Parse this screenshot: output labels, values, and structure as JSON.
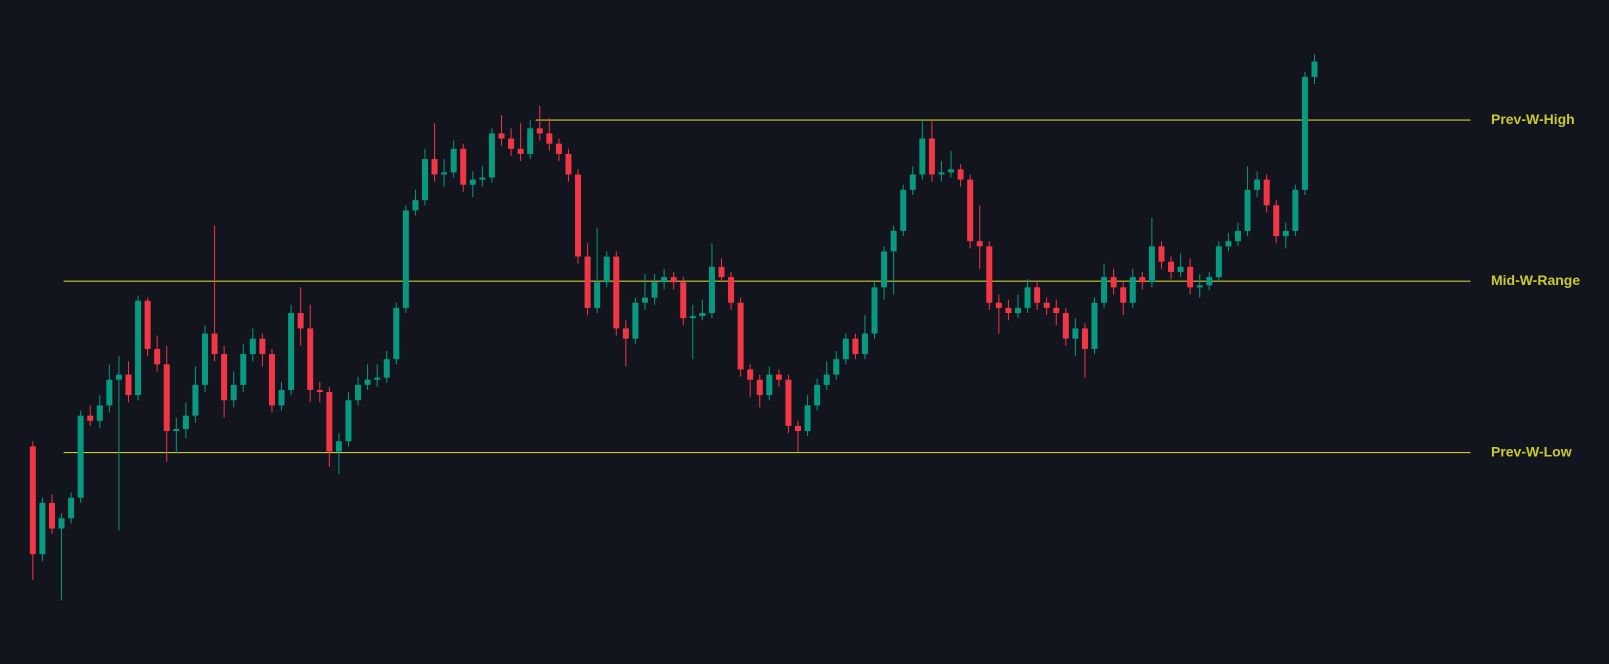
{
  "chart_data": {
    "type": "candlestick",
    "ylim": [
      0,
      647
    ],
    "up_color": "#089981",
    "down_color": "#f23645",
    "level_color": "#c9c930",
    "open": [
      212,
      107,
      157,
      132,
      142,
      162,
      242,
      237,
      252,
      277,
      282,
      262,
      354,
      307,
      292,
      227,
      229,
      242,
      272,
      322,
      302,
      257,
      272,
      302,
      317,
      302,
      252,
      267,
      342,
      327,
      267,
      265,
      207,
      217,
      257,
      272,
      277,
      279,
      297,
      347,
      442,
      452,
      492,
      477,
      479,
      502,
      467,
      472,
      474,
      517,
      512,
      502,
      497,
      522,
      517,
      507,
      497,
      477,
      397,
      347,
      372,
      397,
      327,
      317,
      352,
      357,
      372,
      377,
      372,
      337,
      339,
      342,
      387,
      377,
      352,
      287,
      277,
      262,
      282,
      277,
      232,
      227,
      252,
      272,
      282,
      297,
      317,
      302,
      322,
      367,
      402,
      422,
      462,
      477,
      512,
      477,
      479,
      482,
      472,
      412,
      407,
      352,
      347,
      342,
      347,
      367,
      352,
      347,
      342,
      317,
      327,
      307,
      352,
      377,
      367,
      352,
      377,
      372,
      407,
      392,
      382,
      387,
      367,
      369,
      377,
      407,
      412,
      422,
      462,
      472,
      447,
      417,
      422,
      462,
      572
    ],
    "high": [
      217,
      162,
      165,
      147,
      167,
      247,
      252,
      262,
      292,
      300,
      295,
      359,
      357,
      320,
      310,
      240,
      255,
      290,
      330,
      427,
      310,
      285,
      312,
      327,
      322,
      307,
      275,
      350,
      367,
      350,
      275,
      270,
      225,
      265,
      280,
      292,
      292,
      305,
      352,
      447,
      462,
      502,
      527,
      492,
      510,
      507,
      480,
      485,
      522,
      535,
      522,
      527,
      530,
      544,
      532,
      512,
      502,
      482,
      410,
      425,
      402,
      402,
      335,
      357,
      380,
      380,
      385,
      382,
      377,
      350,
      355,
      410,
      395,
      382,
      357,
      292,
      282,
      290,
      287,
      282,
      237,
      262,
      278,
      295,
      305,
      322,
      322,
      340,
      372,
      407,
      427,
      467,
      485,
      530,
      530,
      490,
      500,
      487,
      477,
      447,
      412,
      360,
      355,
      360,
      375,
      372,
      357,
      355,
      347,
      337,
      332,
      357,
      390,
      385,
      372,
      385,
      382,
      435,
      412,
      397,
      400,
      395,
      380,
      382,
      412,
      420,
      430,
      485,
      480,
      477,
      452,
      430,
      467,
      577,
      594
    ],
    "low": [
      82,
      100,
      127,
      62,
      137,
      157,
      232,
      230,
      245,
      130,
      255,
      257,
      300,
      285,
      197,
      205,
      220,
      235,
      265,
      295,
      240,
      250,
      265,
      295,
      290,
      245,
      247,
      262,
      310,
      255,
      255,
      192,
      185,
      212,
      252,
      267,
      270,
      274,
      292,
      342,
      437,
      447,
      470,
      465,
      474,
      460,
      455,
      465,
      469,
      505,
      495,
      490,
      492,
      510,
      500,
      490,
      470,
      390,
      340,
      342,
      367,
      320,
      290,
      312,
      345,
      350,
      365,
      365,
      330,
      297,
      335,
      337,
      372,
      345,
      280,
      260,
      250,
      257,
      270,
      225,
      207,
      222,
      247,
      267,
      277,
      292,
      297,
      297,
      317,
      355,
      360,
      417,
      457,
      472,
      470,
      470,
      474,
      465,
      405,
      385,
      345,
      322,
      335,
      337,
      342,
      345,
      340,
      330,
      310,
      300,
      279,
      302,
      347,
      360,
      340,
      347,
      365,
      367,
      385,
      375,
      377,
      360,
      357,
      364,
      372,
      402,
      407,
      417,
      455,
      440,
      410,
      405,
      417,
      457,
      565
    ],
    "close": [
      107,
      157,
      132,
      142,
      162,
      242,
      237,
      252,
      277,
      282,
      262,
      354,
      307,
      292,
      227,
      229,
      242,
      272,
      322,
      302,
      257,
      272,
      302,
      317,
      302,
      252,
      267,
      342,
      327,
      267,
      265,
      207,
      217,
      257,
      272,
      277,
      279,
      297,
      347,
      442,
      452,
      492,
      477,
      479,
      502,
      467,
      472,
      474,
      517,
      512,
      502,
      497,
      522,
      517,
      507,
      497,
      477,
      397,
      347,
      372,
      397,
      327,
      317,
      352,
      357,
      372,
      377,
      372,
      337,
      339,
      342,
      387,
      377,
      352,
      287,
      277,
      262,
      282,
      277,
      232,
      227,
      252,
      272,
      282,
      297,
      317,
      302,
      322,
      367,
      402,
      422,
      462,
      477,
      512,
      477,
      479,
      482,
      472,
      412,
      407,
      352,
      347,
      342,
      347,
      367,
      352,
      347,
      342,
      317,
      327,
      307,
      352,
      377,
      367,
      352,
      377,
      372,
      407,
      392,
      382,
      387,
      367,
      369,
      377,
      407,
      412,
      422,
      462,
      472,
      447,
      417,
      422,
      462,
      572,
      587
    ],
    "levels": [
      {
        "label": "Prev-W-High",
        "value": 530
      },
      {
        "label": "Mid-W-Range",
        "value": 373
      },
      {
        "label": "Prev-W-Low",
        "value": 206
      }
    ]
  }
}
